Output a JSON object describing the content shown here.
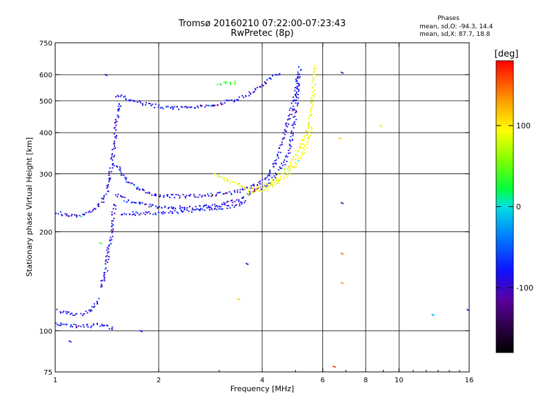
{
  "header": {
    "title": "Tromsø 20160210 07:22:00-07:23:43",
    "subtitle": "RwPretec (8p)",
    "stats_title": "Phases",
    "stats_o": "mean, sd,O: -94.3, 14.4",
    "stats_x": "mean, sd,X:  87.7, 18.8"
  },
  "colorbar": {
    "unit_label": "[deg]",
    "tick_labels": [
      "100",
      "0",
      "-100"
    ],
    "tick_values": [
      100,
      0,
      -100
    ],
    "range": [
      -180,
      180
    ]
  },
  "chart_data": {
    "type": "scatter",
    "title": "Tromsø 20160210 07:22:00-07:23:43",
    "subtitle": "RwPretec (8p)",
    "xlabel": "Frequency [MHz]",
    "ylabel": "Stationary phase Virtual Height [km]",
    "x_scale": "log",
    "y_scale": "log",
    "xlim": [
      1,
      16
    ],
    "ylim": [
      75,
      750
    ],
    "x_ticks": [
      1,
      2,
      4,
      6,
      8,
      10,
      16
    ],
    "x_tick_labels": [
      "1",
      "2",
      "4",
      "6",
      "8",
      "10",
      "16"
    ],
    "y_ticks": [
      75,
      100,
      200,
      300,
      400,
      500,
      600,
      750
    ],
    "y_tick_labels": [
      "75",
      "100",
      "200",
      "300",
      "400",
      "500",
      "600",
      "750"
    ],
    "x_gridlines": [
      2,
      4,
      6,
      8,
      10
    ],
    "y_gridlines": [
      100,
      200,
      300,
      400,
      500,
      600
    ],
    "color_variable": "phase [deg]",
    "traces": [
      {
        "phase": -100,
        "points": [
          [
            1.0,
            105
          ],
          [
            1.1,
            104
          ],
          [
            1.2,
            103
          ],
          [
            1.3,
            104
          ],
          [
            1.4,
            104
          ],
          [
            1.45,
            102
          ],
          [
            1.5,
            101
          ]
        ]
      },
      {
        "phase": -100,
        "points": [
          [
            1.02,
            115
          ],
          [
            1.1,
            113
          ],
          [
            1.2,
            112
          ],
          [
            1.3,
            118
          ],
          [
            1.35,
            125
          ]
        ]
      },
      {
        "phase": -100,
        "points": [
          [
            1.35,
            135
          ],
          [
            1.4,
            150
          ],
          [
            1.42,
            165
          ],
          [
            1.44,
            185
          ],
          [
            1.46,
            200
          ],
          [
            1.47,
            215
          ],
          [
            1.48,
            230
          ],
          [
            1.49,
            245
          ]
        ]
      },
      {
        "phase": -100,
        "points": [
          [
            1.0,
            230
          ],
          [
            1.05,
            226
          ],
          [
            1.1,
            224
          ],
          [
            1.2,
            225
          ],
          [
            1.3,
            235
          ],
          [
            1.38,
            250
          ],
          [
            1.42,
            268
          ],
          [
            1.45,
            300
          ],
          [
            1.47,
            330
          ],
          [
            1.49,
            370
          ],
          [
            1.5,
            420
          ],
          [
            1.52,
            470
          ],
          [
            1.55,
            500
          ]
        ]
      },
      {
        "phase": -100,
        "points": [
          [
            1.5,
            320
          ],
          [
            1.55,
            305
          ],
          [
            1.6,
            290
          ],
          [
            1.7,
            275
          ],
          [
            1.8,
            265
          ],
          [
            2.0,
            258
          ],
          [
            2.3,
            256
          ],
          [
            2.8,
            258
          ],
          [
            3.2,
            262
          ],
          [
            3.5,
            268
          ],
          [
            3.9,
            280
          ],
          [
            4.2,
            300
          ],
          [
            4.4,
            330
          ],
          [
            4.6,
            380
          ],
          [
            4.8,
            450
          ],
          [
            5.0,
            520
          ],
          [
            5.1,
            600
          ],
          [
            5.15,
            640
          ]
        ]
      },
      {
        "phase": -100,
        "points": [
          [
            1.5,
            260
          ],
          [
            1.6,
            250
          ],
          [
            1.8,
            242
          ],
          [
            2.0,
            238
          ],
          [
            2.5,
            236
          ],
          [
            3.0,
            240
          ],
          [
            3.4,
            250
          ],
          [
            3.6,
            258
          ],
          [
            4.0,
            272
          ],
          [
            4.3,
            290
          ],
          [
            4.6,
            320
          ],
          [
            4.8,
            350
          ],
          [
            4.9,
            400
          ],
          [
            5.0,
            460
          ],
          [
            5.05,
            520
          ],
          [
            5.1,
            600
          ]
        ]
      },
      {
        "phase": -100,
        "points": [
          [
            1.55,
            228
          ],
          [
            1.7,
            227
          ],
          [
            2.0,
            228
          ],
          [
            2.5,
            232
          ],
          [
            3.0,
            236
          ],
          [
            3.4,
            240
          ],
          [
            3.6,
            250
          ]
        ]
      },
      {
        "phase": -100,
        "points": [
          [
            1.5,
            520
          ],
          [
            1.6,
            510
          ],
          [
            1.8,
            490
          ],
          [
            2.0,
            480
          ],
          [
            2.2,
            475
          ],
          [
            2.5,
            478
          ],
          [
            2.8,
            485
          ],
          [
            3.0,
            490
          ],
          [
            3.3,
            500
          ],
          [
            3.6,
            520
          ],
          [
            3.9,
            545
          ],
          [
            4.2,
            580
          ],
          [
            4.5,
            610
          ]
        ]
      },
      {
        "phase": 100,
        "points": [
          [
            2.9,
            300
          ],
          [
            3.0,
            292
          ],
          [
            3.2,
            285
          ],
          [
            3.4,
            280
          ],
          [
            3.6,
            272
          ],
          [
            3.8,
            268
          ],
          [
            4.1,
            275
          ],
          [
            4.4,
            290
          ],
          [
            4.7,
            310
          ],
          [
            5.0,
            340
          ],
          [
            5.3,
            380
          ],
          [
            5.5,
            430
          ],
          [
            5.6,
            500
          ],
          [
            5.65,
            560
          ],
          [
            5.7,
            640
          ]
        ]
      },
      {
        "phase": 95,
        "points": [
          [
            3.6,
            262
          ],
          [
            3.9,
            265
          ],
          [
            4.2,
            272
          ],
          [
            4.5,
            285
          ],
          [
            4.8,
            300
          ],
          [
            5.1,
            330
          ],
          [
            5.4,
            370
          ],
          [
            5.55,
            420
          ]
        ]
      },
      {
        "phase": 40,
        "points": [
          [
            3.0,
            560
          ],
          [
            3.2,
            565
          ],
          [
            3.4,
            570
          ]
        ]
      }
    ],
    "isolated_points": [
      {
        "x": 6.45,
        "y": 78,
        "phase": 170
      },
      {
        "x": 6.8,
        "y": 610,
        "phase": -120
      },
      {
        "x": 6.7,
        "y": 385,
        "phase": 120
      },
      {
        "x": 6.8,
        "y": 245,
        "phase": -110
      },
      {
        "x": 6.8,
        "y": 172,
        "phase": 150
      },
      {
        "x": 6.8,
        "y": 140,
        "phase": 140
      },
      {
        "x": 8.8,
        "y": 420,
        "phase": 90
      },
      {
        "x": 12.5,
        "y": 112,
        "phase": -20
      },
      {
        "x": 15.8,
        "y": 116,
        "phase": -100
      },
      {
        "x": 3.6,
        "y": 160,
        "phase": -110
      },
      {
        "x": 3.4,
        "y": 125,
        "phase": 120
      },
      {
        "x": 1.1,
        "y": 93,
        "phase": -100
      },
      {
        "x": 1.77,
        "y": 100,
        "phase": -100
      },
      {
        "x": 1.35,
        "y": 185,
        "phase": 40
      },
      {
        "x": 1.4,
        "y": 600,
        "phase": -110
      }
    ]
  }
}
